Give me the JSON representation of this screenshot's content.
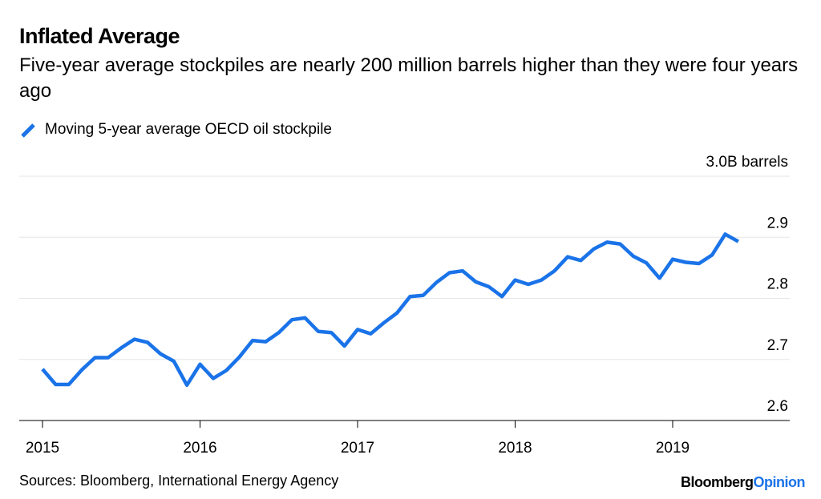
{
  "title": "Inflated Average",
  "subtitle": "Five-year average stockpiles are nearly 200 million barrels higher than they were four years ago",
  "source_note": "Sources: Bloomberg, International Energy Agency",
  "brand": {
    "part1": "Bloomberg",
    "part2": "Opinion"
  },
  "colors": {
    "line": "#1a73e8",
    "grid": "#e6e6e6",
    "axis": "#000000",
    "brand_accent": "#1a73e8"
  },
  "legend_icon": "diagonal-line-swatch-icon",
  "chart_data": {
    "type": "line",
    "title": "Inflated Average",
    "subtitle": "Five-year average stockpiles are nearly 200 million barrels higher than they were four years ago",
    "xlabel": "",
    "ylabel": "",
    "y_unit_label": "3.0B barrels",
    "ylim": [
      2.6,
      3.0
    ],
    "xlim": [
      "2015-01",
      "2019-09"
    ],
    "grid": true,
    "legend_placement": "top-left",
    "y_ticks": [
      {
        "value": 3.0,
        "label": "3.0B barrels"
      },
      {
        "value": 2.9,
        "label": "2.9"
      },
      {
        "value": 2.8,
        "label": "2.8"
      },
      {
        "value": 2.7,
        "label": "2.7"
      },
      {
        "value": 2.6,
        "label": "2.6"
      }
    ],
    "x_ticks": [
      {
        "value": "2015-01",
        "label": "2015"
      },
      {
        "value": "2016-01",
        "label": "2016"
      },
      {
        "value": "2017-01",
        "label": "2017"
      },
      {
        "value": "2018-01",
        "label": "2018"
      },
      {
        "value": "2019-01",
        "label": "2019"
      }
    ],
    "series": [
      {
        "name": "Moving 5-year average OECD oil stockpile",
        "color": "#1a73e8",
        "x": [
          "2015-01",
          "2015-02",
          "2015-03",
          "2015-04",
          "2015-05",
          "2015-06",
          "2015-07",
          "2015-08",
          "2015-09",
          "2015-10",
          "2015-11",
          "2015-12",
          "2016-01",
          "2016-02",
          "2016-03",
          "2016-04",
          "2016-05",
          "2016-06",
          "2016-07",
          "2016-08",
          "2016-09",
          "2016-10",
          "2016-11",
          "2016-12",
          "2017-01",
          "2017-02",
          "2017-03",
          "2017-04",
          "2017-05",
          "2017-06",
          "2017-07",
          "2017-08",
          "2017-09",
          "2017-10",
          "2017-11",
          "2017-12",
          "2018-01",
          "2018-02",
          "2018-03",
          "2018-04",
          "2018-05",
          "2018-06",
          "2018-07",
          "2018-08",
          "2018-09",
          "2018-10",
          "2018-11",
          "2018-12",
          "2019-01",
          "2019-02",
          "2019-03",
          "2019-04",
          "2019-05",
          "2019-06"
        ],
        "values": [
          2.684,
          2.659,
          2.659,
          2.683,
          2.703,
          2.703,
          2.719,
          2.733,
          2.728,
          2.709,
          2.697,
          2.658,
          2.692,
          2.669,
          2.682,
          2.704,
          2.731,
          2.729,
          2.744,
          2.765,
          2.768,
          2.746,
          2.744,
          2.722,
          2.749,
          2.742,
          2.76,
          2.776,
          2.803,
          2.805,
          2.826,
          2.842,
          2.845,
          2.827,
          2.819,
          2.803,
          2.83,
          2.823,
          2.83,
          2.845,
          2.868,
          2.862,
          2.881,
          2.892,
          2.889,
          2.869,
          2.858,
          2.833,
          2.864,
          2.859,
          2.857,
          2.871,
          2.905,
          2.893
        ]
      }
    ]
  }
}
